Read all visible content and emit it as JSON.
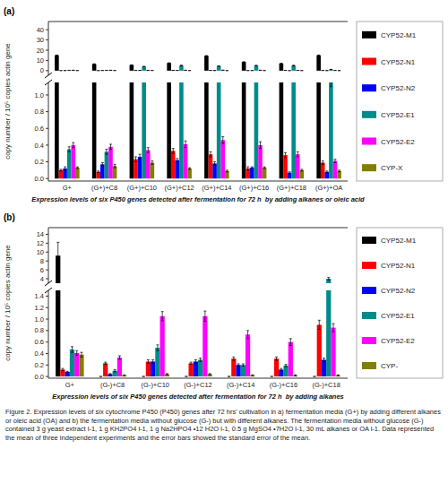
{
  "chart_data": [
    {
      "type": "bar",
      "title": "Expression levels of six P450 genes detected after fermentation for 72 h  by adding alkanes or oleic acid",
      "ylabel": "copy number / 10⁵ copies actin gene",
      "annotations": [
        {
          "text": "(a)"
        }
      ],
      "categories": [
        "G+",
        "(G+)+C8",
        "(G+)+C10",
        "(G+)+C12",
        "(G+)+C14",
        "(G+)+C16",
        "(G+)+C18",
        "(G+)+OA"
      ],
      "series": [
        {
          "name": "CYP52-M1",
          "color": "#000000",
          "values": [
            15.0,
            6.5,
            5.5,
            7.5,
            14.5,
            8.5,
            7.0,
            15.0
          ],
          "errors": [
            0.3,
            0.2,
            0.2,
            0.2,
            0.3,
            0.2,
            0.2,
            0.3
          ]
        },
        {
          "name": "CYP52-N1",
          "color": "#ff0000",
          "values": [
            0.1,
            0.08,
            0.23,
            0.33,
            0.29,
            0.12,
            0.28,
            0.19
          ],
          "errors": [
            0.01,
            0.01,
            0.03,
            0.03,
            0.03,
            0.02,
            0.03,
            0.02
          ]
        },
        {
          "name": "CYP52-N2",
          "color": "#0000ff",
          "values": [
            0.12,
            0.17,
            0.26,
            0.22,
            0.18,
            0.13,
            0.07,
            0.08
          ],
          "errors": [
            0.02,
            0.02,
            0.03,
            0.02,
            0.02,
            0.01,
            0.01,
            0.01
          ]
        },
        {
          "name": "CYP52-E1",
          "color": "#008B8B",
          "values": [
            0.35,
            0.32,
            4.0,
            5.0,
            4.5,
            5.0,
            5.0,
            1.2
          ],
          "errors": [
            0.03,
            0.03,
            0.3,
            0.4,
            0.3,
            0.3,
            0.4,
            0.1
          ]
        },
        {
          "name": "CYP52-E2",
          "color": "#ff00ff",
          "values": [
            0.4,
            0.38,
            0.34,
            0.41,
            0.46,
            0.4,
            0.29,
            0.21
          ],
          "errors": [
            0.03,
            0.03,
            0.03,
            0.04,
            0.04,
            0.04,
            0.03,
            0.02
          ]
        },
        {
          "name": "CYP-X",
          "color": "#808000",
          "values": [
            0.13,
            0.15,
            0.19,
            0.12,
            0.09,
            0.13,
            0.1,
            0.09
          ],
          "errors": [
            0.01,
            0.02,
            0.02,
            0.01,
            0.01,
            0.01,
            0.01,
            0.01
          ]
        }
      ],
      "ylim": [
        [
          -0.03,
          1.15
        ],
        [
          -4.5,
          48
        ]
      ],
      "yticks": [
        [
          {
            "value": 0.0,
            "label": "0.0"
          },
          0.2,
          0.4,
          0.6,
          0.8,
          {
            "value": 1.0,
            "label": "1.0"
          }
        ],
        [
          0,
          10,
          20,
          30,
          40
        ]
      ],
      "grid": false,
      "legend": "right"
    },
    {
      "type": "bar",
      "title": "Expression levels of six P450 genes detected after fermentation for 72 h  by adding alkanes",
      "ylabel": "copy number / 10⁵ copies actin gene",
      "annotations": [
        {
          "text": "(b)"
        }
      ],
      "caption": "Figure 2. Expression levels of six cytochrome P450 (P450) genes after 72 hrs' cultivation in a) fermentation media (G+) by adding different alkanes or oleic acid (OA) and b) the fermentation media without glucose (G-) but with different alkanes. The fermentation media without glucose (G-) contained 3 g yeast extract l-1, 1 g KH2PO4 l-1, 1 g Na2HPO4 •12 H2O l-1, 0.5 g MgSO4 •7H2O l-1, 30 mL alkanes or OA l-1. Data represented the mean of three independent experiments and the error bars showed the standard error of the mean.",
      "categories": [
        "G+",
        "(G-)+C8",
        "(G-)+C10",
        "(G-)+C12",
        "(G-)+C14",
        "(G-)+C16",
        "(G-)+C18"
      ],
      "series": [
        {
          "name": "CYP52-M1",
          "color": "#000000",
          "values": [
            9.2,
            0.0,
            0.0,
            0.0,
            0.0,
            0.0,
            0.0
          ],
          "errors": [
            3.0,
            0.0,
            0.0,
            0.0,
            0.0,
            0.0,
            0.0
          ]
        },
        {
          "name": "CYP52-N1",
          "color": "#ff0000",
          "values": [
            0.12,
            0.23,
            0.26,
            0.23,
            0.31,
            0.31,
            0.9
          ],
          "errors": [
            0.02,
            0.02,
            0.03,
            0.02,
            0.03,
            0.03,
            0.08
          ]
        },
        {
          "name": "CYP52-N2",
          "color": "#0000ff",
          "values": [
            0.08,
            0.04,
            0.26,
            0.26,
            0.2,
            0.12,
            0.29
          ],
          "errors": [
            0.01,
            0.01,
            0.03,
            0.03,
            0.02,
            0.02,
            0.03
          ]
        },
        {
          "name": "CYP52-E1",
          "color": "#008B8B",
          "values": [
            0.47,
            0.1,
            0.5,
            0.29,
            0.2,
            0.19,
            4.0
          ],
          "errors": [
            0.05,
            0.02,
            0.05,
            0.03,
            0.02,
            0.02,
            0.3
          ]
        },
        {
          "name": "CYP52-E2",
          "color": "#ff00ff",
          "values": [
            0.41,
            0.33,
            1.05,
            1.05,
            0.73,
            0.6,
            0.85
          ],
          "errors": [
            0.04,
            0.03,
            0.08,
            0.09,
            0.07,
            0.06,
            0.07
          ]
        },
        {
          "name": "CYP-",
          "color": "#808000",
          "values": [
            0.38,
            0.02,
            0.04,
            0.04,
            0.02,
            0.02,
            0.02
          ],
          "errors": [
            0.04,
            0.01,
            0.01,
            0.01,
            0.01,
            0.01,
            0.01
          ]
        }
      ],
      "ylim": [
        [
          -0.03,
          1.5
        ],
        [
          3,
          15.5
        ]
      ],
      "yticks": [
        [
          {
            "value": 0,
            "label": "0.0"
          },
          0.2,
          0.4,
          0.6,
          0.8,
          {
            "value": 1,
            "label": "1.0"
          },
          1.2,
          1.4
        ],
        [
          4,
          6,
          8,
          10,
          12,
          14
        ]
      ],
      "grid": false,
      "legend": "right"
    }
  ]
}
